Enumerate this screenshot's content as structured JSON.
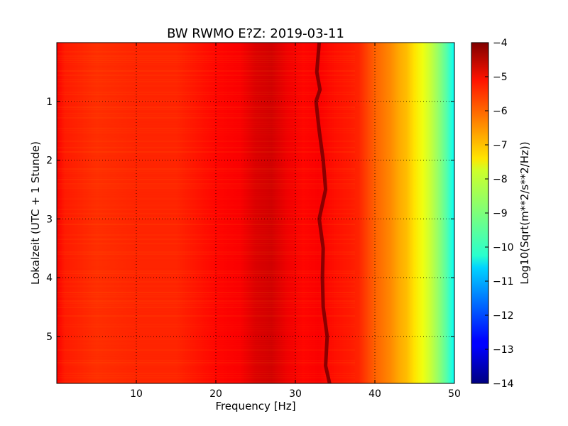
{
  "chart_data": {
    "type": "heatmap",
    "title": "BW RWMO E?Z: 2019-03-11",
    "xlabel": "Frequency [Hz]",
    "ylabel": "Lokalzeit (UTC + 1 Stunde)",
    "xlim": [
      0,
      50
    ],
    "ylim": [
      5.8,
      0
    ],
    "x_ticks": [
      10,
      20,
      30,
      40,
      50
    ],
    "x_tick_labels": [
      "10",
      "20",
      "30",
      "40",
      "50"
    ],
    "y_ticks": [
      1,
      2,
      3,
      4,
      5
    ],
    "y_tick_labels": [
      "1",
      "2",
      "3",
      "4",
      "5"
    ],
    "grid": true,
    "colormap": "jet",
    "colorbar": {
      "label": "Log10(Sqrt(m**2/s**2/Hz))",
      "range": [
        -14,
        -4
      ],
      "ticks": [
        -4,
        -5,
        -6,
        -7,
        -8,
        -9,
        -10,
        -11,
        -12,
        -13,
        -14
      ],
      "tick_labels": [
        "−4",
        "−5",
        "−6",
        "−7",
        "−8",
        "−9",
        "−10",
        "−11",
        "−12",
        "−13",
        "−14"
      ]
    },
    "spectrum_profile": {
      "frequency_hz": [
        0,
        1,
        5,
        10,
        15,
        20,
        23,
        25,
        27,
        29,
        31,
        33,
        35,
        37,
        38,
        39,
        40,
        41,
        42,
        43,
        44,
        45,
        46,
        47,
        48,
        49,
        50
      ],
      "log10_asd": [
        -5.2,
        -5.5,
        -5.7,
        -5.6,
        -5.6,
        -5.3,
        -5.2,
        -4.9,
        -4.8,
        -5.1,
        -5.3,
        -5.2,
        -5.4,
        -5.5,
        -5.6,
        -5.9,
        -6.2,
        -6.4,
        -6.6,
        -6.9,
        -7.1,
        -7.5,
        -7.9,
        -8.3,
        -8.8,
        -9.4,
        -10.2
      ]
    },
    "narrowband_line": {
      "times_h": [
        0.0,
        0.5,
        0.8,
        1.0,
        1.5,
        2.0,
        2.5,
        3.0,
        3.5,
        4.0,
        4.5,
        5.0,
        5.5,
        5.8
      ],
      "frequency_hz": [
        33.0,
        32.7,
        33.1,
        32.6,
        33.0,
        33.5,
        33.8,
        33.0,
        33.5,
        33.4,
        33.5,
        34.0,
        33.8,
        34.3
      ],
      "log10_asd": -4.1
    }
  }
}
